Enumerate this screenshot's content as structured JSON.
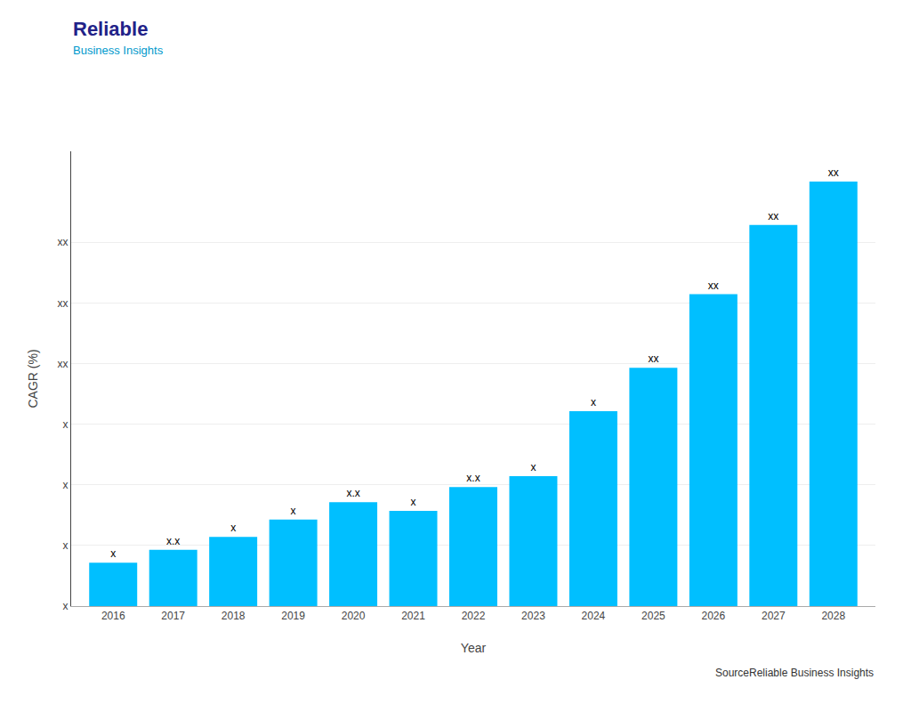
{
  "chart_data": {
    "type": "bar",
    "x": [
      2016,
      2017,
      2018,
      2019,
      2020,
      2021,
      2022,
      2023,
      2024,
      2025,
      2026,
      2027,
      2028
    ],
    "values": [
      1.0,
      1.3,
      1.6,
      2.0,
      2.4,
      2.2,
      2.75,
      3.0,
      4.5,
      5.5,
      7.2,
      8.8,
      9.8
    ],
    "value_labels": [
      "x",
      "x.x",
      "x",
      "x",
      "x.x",
      "x",
      "x.x",
      "x",
      "x",
      "xx",
      "xx",
      "xx",
      "xx"
    ],
    "data_labels": true,
    "color": "#00BFFF",
    "xlabel": "Year",
    "ylabel": "CAGR (%)",
    "xlim": [
      2015.3,
      2028.7
    ],
    "xticks": [
      2016,
      2017,
      2018,
      2019,
      2020,
      2021,
      2022,
      2023,
      2024,
      2025,
      2026,
      2027,
      2028
    ],
    "ylim": [
      0,
      10.5
    ],
    "yticks": [
      {
        "value": 0,
        "label": "x"
      },
      {
        "value": 1.4,
        "label": "x"
      },
      {
        "value": 2.8,
        "label": "x"
      },
      {
        "value": 4.2,
        "label": "x"
      },
      {
        "value": 5.6,
        "label": "xx"
      },
      {
        "value": 7.0,
        "label": "xx"
      },
      {
        "value": 8.4,
        "label": "xx"
      }
    ],
    "grid": true,
    "annotations": [
      "Reliable",
      "Business Insights",
      "SourceReliable Business Insights"
    ]
  }
}
